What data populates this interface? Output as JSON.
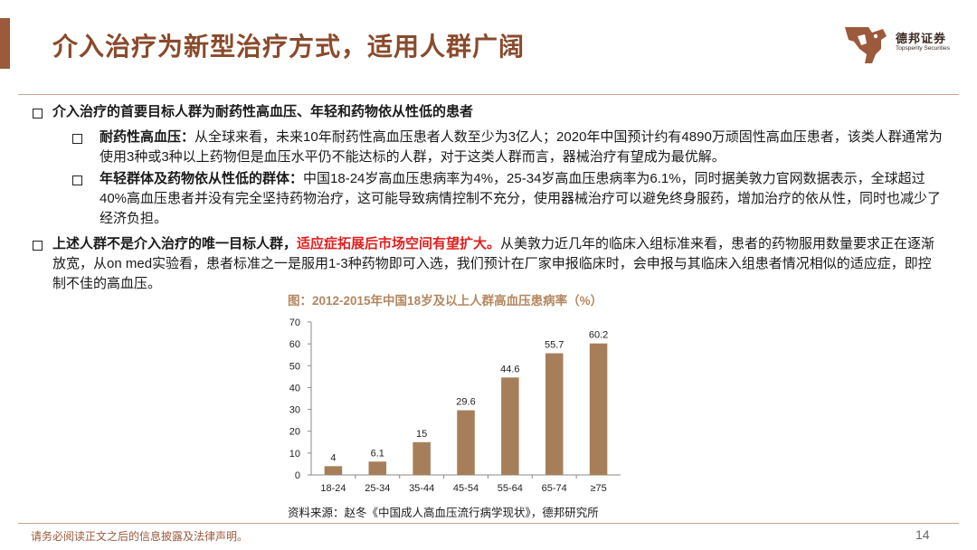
{
  "header": {
    "title": "介入治疗为新型治疗方式，适用人群广阔",
    "logo_name": "德邦证券",
    "logo_en": "Topsperity Securities"
  },
  "bullets": {
    "b1": "介入治疗的首要目标人群为耐药性高血压、年轻和药物依从性低的患者",
    "b2_bold": "耐药性高血压：",
    "b2_text": "从全球来看，未来10年耐药性高血压患者人数至少为3亿人；2020年中国预计约有4890万顽固性高血压患者，该类人群通常为使用3种或3种以上药物但是血压水平仍不能达标的人群，对于这类人群而言，器械治疗有望成为最优解。",
    "b3_bold": "年轻群体及药物依从性低的群体：",
    "b3_text": "中国18-24岁高血压患病率为4%，25-34岁高血压患病率为6.1%，同时据美敦力官网数据表示，全球超过40%高血压患者并没有完全坚持药物治疗，这可能导致病情控制不充分，使用器械治疗可以避免终身服药，增加治疗的依从性，同时也减少了经济负担。",
    "b4_bold": "上述人群不是介入治疗的唯一目标人群，",
    "b4_red": "适应症拓展后市场空间有望扩大。",
    "b4_text": "从美敦力近几年的临床入组标准来看，患者的药物服用数量要求正在逐渐放宽，从on med实验看，患者标准之一是服用1-3种药物即可入选，我们预计在厂家申报临床时，会申报与其临床入组患者情况相似的适应症，即控制不佳的高血压。"
  },
  "chart_data": {
    "type": "bar",
    "title": "图：2012-2015年中国18岁及以上人群高血压患病率（%）",
    "categories": [
      "18-24",
      "25-34",
      "35-44",
      "45-54",
      "55-64",
      "65-74",
      "≥75"
    ],
    "values": [
      4,
      6.1,
      15,
      29.6,
      44.6,
      55.7,
      60.2
    ],
    "value_labels": [
      "4",
      "6.1",
      "15",
      "29.6",
      "44.6",
      "55.7",
      "60.2"
    ],
    "y_ticks": [
      "0",
      "10",
      "20",
      "30",
      "40",
      "50",
      "60",
      "70"
    ],
    "ylim": [
      0,
      70
    ],
    "bar_color": "#a67f5a",
    "grid": false,
    "xlabel": "",
    "ylabel": ""
  },
  "source": "资料来源：赵冬《中国成人高血压流行病学现状》，德邦研究所",
  "footer": {
    "disclaimer": "请务必阅读正文之后的信息披露及法律声明。",
    "page": "14"
  },
  "colors": {
    "title": "#8a4a2c",
    "accent": "#9b5a3c",
    "highlight_red": "#e02020"
  }
}
